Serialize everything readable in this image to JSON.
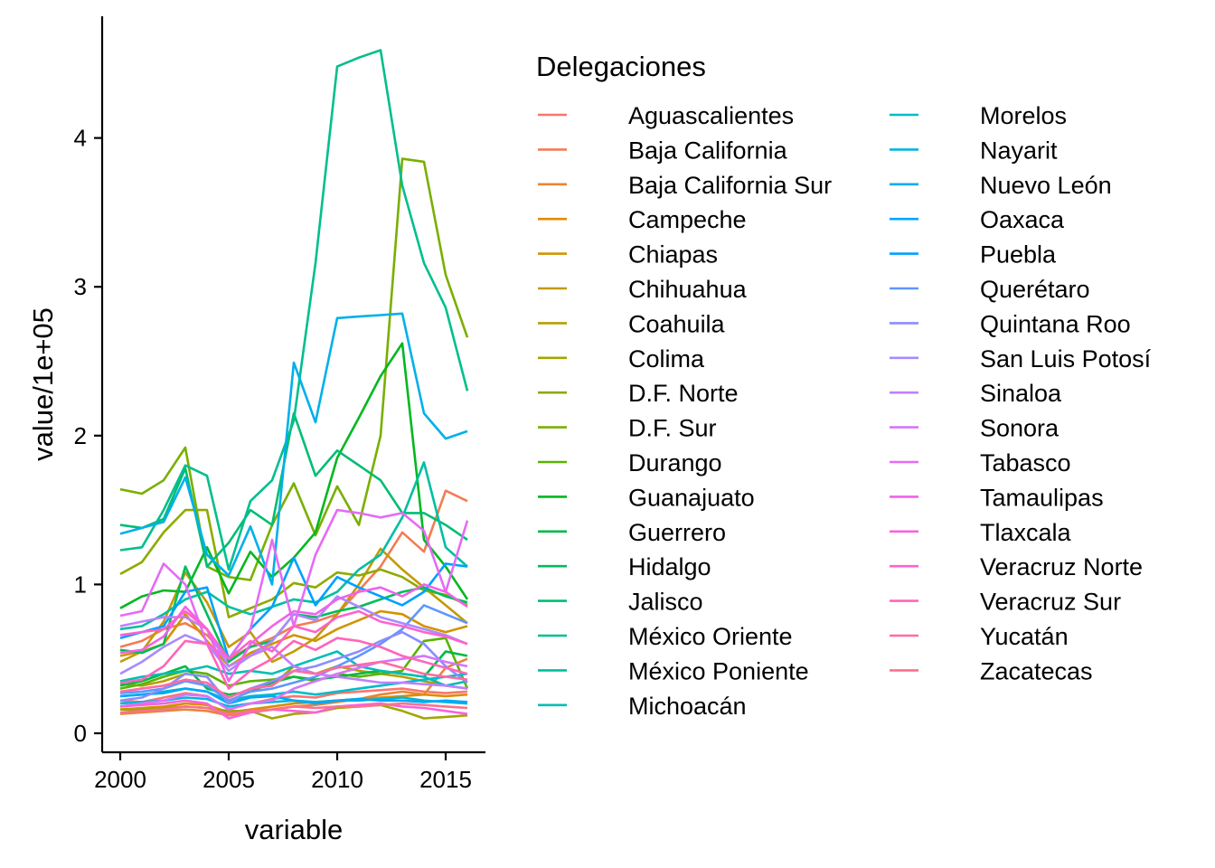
{
  "chart_data": {
    "type": "line",
    "title": "",
    "xlabel": "variable",
    "ylabel": "value/1e+05",
    "x": [
      2000,
      2001,
      2002,
      2003,
      2004,
      2005,
      2006,
      2007,
      2008,
      2009,
      2010,
      2011,
      2012,
      2013,
      2014,
      2015,
      2016
    ],
    "xlim": [
      2000,
      2016
    ],
    "ylim": [
      0,
      4.6
    ],
    "xticks": [
      2000,
      2005,
      2010,
      2015
    ],
    "yticks": [
      0,
      1,
      2,
      3,
      4
    ],
    "grid": false,
    "legend": {
      "title": "Delegaciones",
      "position": "right",
      "columns": 2
    },
    "series": [
      {
        "name": "Aguascalientes",
        "color": "#F8766D",
        "values": [
          0.22,
          0.21,
          0.24,
          0.27,
          0.25,
          0.16,
          0.2,
          0.23,
          0.25,
          0.24,
          0.27,
          0.28,
          0.29,
          0.3,
          0.28,
          0.27,
          0.28
        ]
      },
      {
        "name": "Baja California",
        "color": "#F27D52",
        "values": [
          0.58,
          0.62,
          0.7,
          0.74,
          0.66,
          0.5,
          0.58,
          0.64,
          0.72,
          0.75,
          0.8,
          0.96,
          1.12,
          1.35,
          1.22,
          1.63,
          1.56
        ]
      },
      {
        "name": "Baja California Sur",
        "color": "#E8853A",
        "values": [
          0.13,
          0.14,
          0.15,
          0.16,
          0.15,
          0.12,
          0.14,
          0.16,
          0.18,
          0.19,
          0.21,
          0.23,
          0.26,
          0.28,
          0.26,
          0.44,
          0.5
        ]
      },
      {
        "name": "Campeche",
        "color": "#DE8C00",
        "values": [
          0.16,
          0.17,
          0.18,
          0.2,
          0.19,
          0.14,
          0.16,
          0.18,
          0.2,
          0.21,
          0.22,
          0.23,
          0.24,
          0.25,
          0.26,
          0.25,
          0.26
        ]
      },
      {
        "name": "Chiapas",
        "color": "#D29300",
        "values": [
          0.52,
          0.55,
          0.6,
          0.8,
          0.62,
          0.45,
          0.54,
          0.6,
          0.66,
          0.62,
          0.7,
          0.76,
          0.82,
          0.8,
          0.72,
          0.68,
          0.72
        ]
      },
      {
        "name": "Chihuahua",
        "color": "#C49A00",
        "values": [
          0.48,
          0.55,
          0.75,
          1.08,
          0.88,
          0.58,
          0.68,
          0.48,
          0.55,
          0.64,
          0.8,
          1.0,
          1.24,
          1.1,
          0.98,
          0.86,
          0.74
        ]
      },
      {
        "name": "Coahuila",
        "color": "#B4A000",
        "values": [
          0.33,
          0.32,
          0.35,
          0.4,
          0.38,
          0.2,
          0.3,
          0.32,
          0.45,
          0.4,
          0.45,
          0.42,
          0.4,
          0.38,
          0.35,
          0.32,
          0.3
        ]
      },
      {
        "name": "Colima",
        "color": "#A3A500",
        "values": [
          0.16,
          0.16,
          0.17,
          0.18,
          0.17,
          0.15,
          0.15,
          0.1,
          0.13,
          0.14,
          0.17,
          0.18,
          0.19,
          0.15,
          0.1,
          0.11,
          0.12
        ]
      },
      {
        "name": "D.F. Norte",
        "color": "#8FAA00",
        "values": [
          1.07,
          1.15,
          1.35,
          1.5,
          1.5,
          0.78,
          0.84,
          0.9,
          1.01,
          0.98,
          1.08,
          1.06,
          1.1,
          1.05,
          0.96,
          0.93,
          0.86
        ]
      },
      {
        "name": "D.F. Sur",
        "color": "#79AF00",
        "values": [
          1.64,
          1.61,
          1.7,
          1.92,
          1.12,
          1.05,
          1.03,
          1.4,
          1.68,
          1.33,
          1.66,
          1.4,
          2.0,
          3.86,
          3.84,
          3.08,
          2.66
        ]
      },
      {
        "name": "Durango",
        "color": "#5BB300",
        "values": [
          0.3,
          0.33,
          0.38,
          0.42,
          0.4,
          0.32,
          0.35,
          0.36,
          0.38,
          0.35,
          0.4,
          0.38,
          0.4,
          0.42,
          0.62,
          0.64,
          0.3
        ]
      },
      {
        "name": "Guanajuato",
        "color": "#00B81F",
        "values": [
          0.84,
          0.92,
          0.96,
          0.95,
          1.25,
          0.94,
          1.22,
          1.05,
          1.18,
          1.35,
          1.85,
          2.12,
          2.4,
          2.62,
          1.3,
          1.12,
          0.9
        ]
      },
      {
        "name": "Guerrero",
        "color": "#00BA42",
        "values": [
          0.32,
          0.35,
          0.4,
          0.45,
          0.3,
          0.26,
          0.28,
          0.34,
          0.38,
          0.36,
          0.38,
          0.4,
          0.42,
          0.4,
          0.38,
          0.55,
          0.52
        ]
      },
      {
        "name": "Hidalgo",
        "color": "#00BC5B",
        "values": [
          0.56,
          0.54,
          0.6,
          1.12,
          0.8,
          0.48,
          0.58,
          0.62,
          0.8,
          0.78,
          0.82,
          0.85,
          0.9,
          0.95,
          0.98,
          0.92,
          0.88
        ]
      },
      {
        "name": "Jalisco",
        "color": "#00BD73",
        "values": [
          1.4,
          1.38,
          1.44,
          1.78,
          1.12,
          1.28,
          1.5,
          1.4,
          2.15,
          1.73,
          1.9,
          1.8,
          1.7,
          1.48,
          1.48,
          1.4,
          1.3
        ]
      },
      {
        "name": "México Oriente",
        "color": "#00BF8C",
        "values": [
          1.23,
          1.25,
          1.5,
          1.8,
          1.73,
          1.1,
          1.56,
          1.7,
          2.1,
          3.16,
          4.48,
          4.54,
          4.59,
          3.68,
          3.16,
          2.86,
          2.3
        ]
      },
      {
        "name": "México Poniente",
        "color": "#00BFA1",
        "values": [
          0.7,
          0.72,
          0.8,
          0.9,
          0.95,
          0.85,
          0.8,
          0.85,
          0.9,
          0.88,
          0.95,
          1.1,
          1.2,
          1.45,
          1.82,
          1.25,
          1.12
        ]
      },
      {
        "name": "Michoacán",
        "color": "#00BEB6",
        "values": [
          0.35,
          0.38,
          0.4,
          0.42,
          0.45,
          0.4,
          0.42,
          0.4,
          0.45,
          0.5,
          0.55,
          0.45,
          0.42,
          0.4,
          0.38,
          0.32,
          0.35
        ]
      },
      {
        "name": "Morelos",
        "color": "#00BBC9",
        "values": [
          0.25,
          0.26,
          0.28,
          0.3,
          0.28,
          0.22,
          0.25,
          0.26,
          0.28,
          0.26,
          0.28,
          0.3,
          0.32,
          0.34,
          0.36,
          0.38,
          0.4
        ]
      },
      {
        "name": "Nayarit",
        "color": "#00B6DB",
        "values": [
          0.2,
          0.21,
          0.22,
          0.24,
          0.23,
          0.18,
          0.2,
          0.21,
          0.22,
          0.21,
          0.22,
          0.22,
          0.23,
          0.24,
          0.22,
          0.21,
          0.2
        ]
      },
      {
        "name": "Nuevo León",
        "color": "#00B0EB",
        "values": [
          1.34,
          1.38,
          1.42,
          1.72,
          1.2,
          1.06,
          1.39,
          1.0,
          2.49,
          2.09,
          2.79,
          2.8,
          2.81,
          2.82,
          2.15,
          1.98,
          2.03
        ]
      },
      {
        "name": "Oaxaca",
        "color": "#00A8F7",
        "values": [
          0.25,
          0.26,
          0.27,
          0.3,
          0.28,
          0.2,
          0.24,
          0.25,
          0.22,
          0.2,
          0.22,
          0.23,
          0.22,
          0.22,
          0.21,
          0.22,
          0.21
        ]
      },
      {
        "name": "Puebla",
        "color": "#00A0FF",
        "values": [
          0.64,
          0.68,
          0.72,
          0.95,
          0.98,
          0.5,
          0.7,
          0.85,
          1.18,
          0.86,
          1.05,
          0.98,
          0.92,
          0.86,
          0.95,
          1.14,
          1.12
        ]
      },
      {
        "name": "Querétaro",
        "color": "#5F96FF",
        "values": [
          0.27,
          0.28,
          0.3,
          0.35,
          0.32,
          0.22,
          0.28,
          0.3,
          0.34,
          0.38,
          0.45,
          0.52,
          0.6,
          0.7,
          0.86,
          0.8,
          0.74
        ]
      },
      {
        "name": "Quintana Roo",
        "color": "#8B8CFF",
        "values": [
          0.22,
          0.24,
          0.3,
          0.4,
          0.38,
          0.2,
          0.3,
          0.35,
          0.42,
          0.45,
          0.5,
          0.55,
          0.62,
          0.68,
          0.6,
          0.45,
          0.34
        ]
      },
      {
        "name": "San Luis Potosí",
        "color": "#A98AFF",
        "values": [
          0.4,
          0.48,
          0.58,
          0.66,
          0.6,
          0.42,
          0.52,
          0.62,
          0.8,
          0.76,
          0.92,
          0.85,
          0.78,
          0.74,
          0.7,
          0.66,
          0.6
        ]
      },
      {
        "name": "Sinaloa",
        "color": "#C17FFF",
        "values": [
          0.72,
          0.75,
          0.78,
          0.78,
          0.7,
          0.45,
          0.52,
          0.58,
          0.45,
          0.4,
          0.38,
          0.36,
          0.34,
          0.34,
          0.33,
          0.32,
          0.3
        ]
      },
      {
        "name": "Sonora",
        "color": "#D575FE",
        "values": [
          0.18,
          0.2,
          0.22,
          0.26,
          0.25,
          0.16,
          0.2,
          0.22,
          0.3,
          0.35,
          0.4,
          0.44,
          0.48,
          0.5,
          0.52,
          0.48,
          0.45
        ]
      },
      {
        "name": "Tabasco",
        "color": "#E56BF6",
        "values": [
          0.79,
          0.82,
          1.14,
          1.0,
          0.6,
          0.5,
          0.7,
          1.3,
          0.72,
          1.2,
          1.5,
          1.48,
          1.45,
          1.48,
          1.36,
          0.95,
          1.43
        ]
      },
      {
        "name": "Tamaulipas",
        "color": "#F063EA",
        "values": [
          0.54,
          0.56,
          0.65,
          0.85,
          0.7,
          0.35,
          0.6,
          0.72,
          0.82,
          0.8,
          0.9,
          0.95,
          0.98,
          0.92,
          1.0,
          0.95,
          0.85
        ]
      },
      {
        "name": "Tlaxcala",
        "color": "#F962DD",
        "values": [
          0.18,
          0.19,
          0.2,
          0.22,
          0.2,
          0.1,
          0.14,
          0.16,
          0.15,
          0.14,
          0.18,
          0.19,
          0.2,
          0.18,
          0.17,
          0.15,
          0.13
        ]
      },
      {
        "name": "Veracruz Norte",
        "color": "#FE62CD",
        "values": [
          0.66,
          0.68,
          0.7,
          0.82,
          0.7,
          0.5,
          0.62,
          0.55,
          0.72,
          0.68,
          0.78,
          0.82,
          0.75,
          0.72,
          0.68,
          0.65,
          0.6
        ]
      },
      {
        "name": "Veracruz Sur",
        "color": "#FF65BA",
        "values": [
          0.34,
          0.36,
          0.45,
          0.62,
          0.6,
          0.3,
          0.42,
          0.5,
          0.62,
          0.56,
          0.64,
          0.62,
          0.58,
          0.52,
          0.48,
          0.44,
          0.4
        ]
      },
      {
        "name": "Yucatán",
        "color": "#FF6BA5",
        "values": [
          0.28,
          0.3,
          0.32,
          0.36,
          0.34,
          0.24,
          0.3,
          0.32,
          0.42,
          0.4,
          0.44,
          0.46,
          0.48,
          0.44,
          0.4,
          0.38,
          0.36
        ]
      },
      {
        "name": "Zacatecas",
        "color": "#FC718D",
        "values": [
          0.14,
          0.15,
          0.16,
          0.18,
          0.17,
          0.13,
          0.15,
          0.16,
          0.18,
          0.17,
          0.18,
          0.18,
          0.19,
          0.2,
          0.19,
          0.18,
          0.17
        ]
      }
    ]
  }
}
